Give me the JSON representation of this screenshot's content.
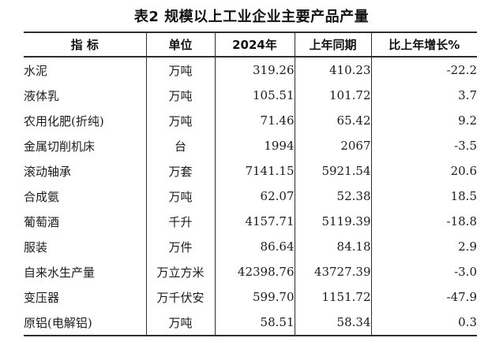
{
  "title": "表2 规模以上工业企业主要产品产量",
  "table": {
    "headers": [
      "指 标",
      "单位",
      "2024年",
      "上年同期",
      "比上年增长%"
    ],
    "rows": [
      [
        "水泥",
        "万吨",
        "319.26",
        "410.23",
        "-22.2"
      ],
      [
        "液体乳",
        "万吨",
        "105.51",
        "101.72",
        "3.7"
      ],
      [
        "农用化肥(折纯)",
        "万吨",
        "71.46",
        "65.42",
        "9.2"
      ],
      [
        "金属切削机床",
        "台",
        "1994",
        "2067",
        "-3.5"
      ],
      [
        "滚动轴承",
        "万套",
        "7141.15",
        "5921.54",
        "20.6"
      ],
      [
        "合成氨",
        "万吨",
        "62.07",
        "52.38",
        "18.5"
      ],
      [
        "葡萄酒",
        "千升",
        "4157.71",
        "5119.39",
        "-18.8"
      ],
      [
        "服装",
        "万件",
        "86.64",
        "84.18",
        "2.9"
      ],
      [
        "自来水生产量",
        "万立方米",
        "42398.76",
        "43727.39",
        "-3.0"
      ],
      [
        "变压器",
        "万千伏安",
        "599.70",
        "1151.72",
        "-47.9"
      ],
      [
        "原铝(电解铝)",
        "万吨",
        "58.51",
        "58.34",
        "0.3"
      ]
    ]
  },
  "colors": {
    "text": "#1c1c1c",
    "border": "#2e2e2e",
    "background": "#ffffff"
  }
}
